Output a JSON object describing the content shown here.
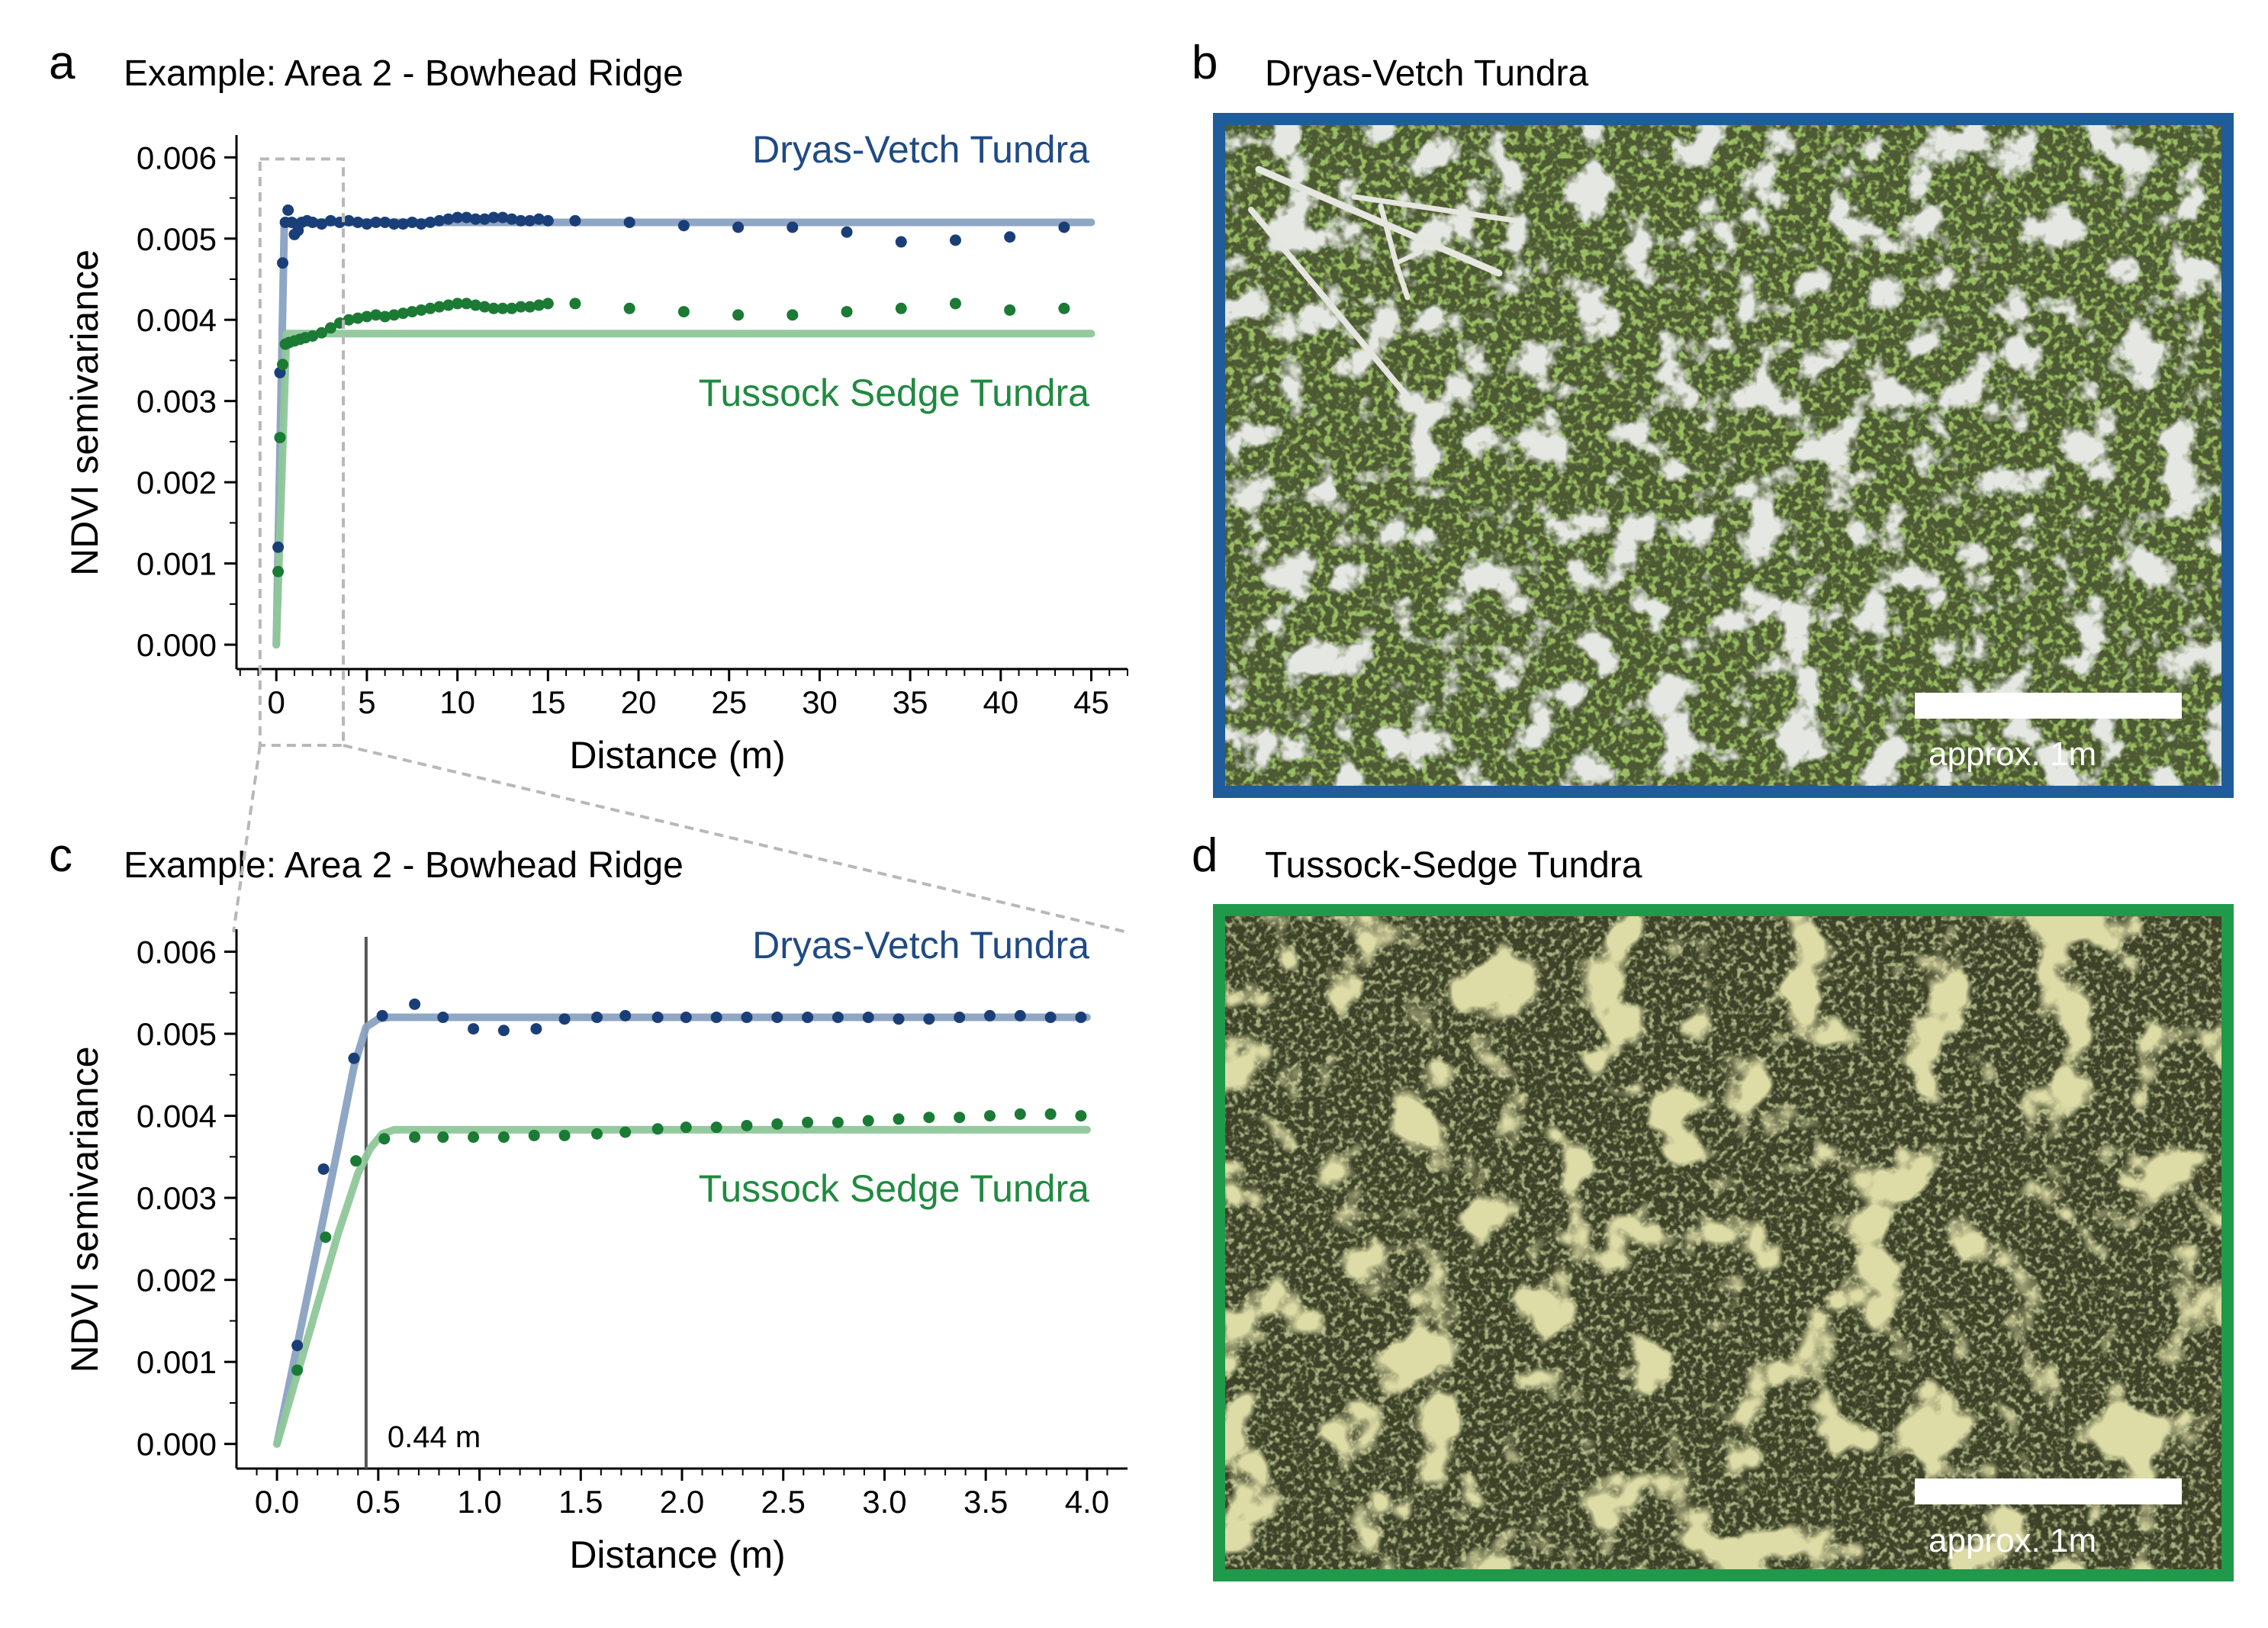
{
  "panels": {
    "a": {
      "letter": "a",
      "title": "Example: Area 2 - Bowhead Ridge"
    },
    "b": {
      "letter": "b",
      "title": "Dryas-Vetch Tundra",
      "scale_label": "approx. 1m",
      "frame_color": "#1f5c99"
    },
    "c": {
      "letter": "c",
      "title": "Example: Area 2 - Bowhead Ridge",
      "vline_label": "0.44 m"
    },
    "d": {
      "letter": "d",
      "title": "Tussock-Sedge Tundra",
      "scale_label": "approx. 1m",
      "frame_color": "#1e9a4a"
    }
  },
  "colors": {
    "dryas_points": "#1a3f78",
    "dryas_line": "#8aa1c2",
    "dryas_label": "#1f4a85",
    "tussock_points": "#1b7a34",
    "tussock_line": "#8fc79a",
    "tussock_label": "#208a40",
    "zoom_box": "#b8b8b8"
  },
  "chart_data": [
    {
      "id": "a",
      "type": "scatter",
      "xlabel": "Distance (m)",
      "ylabel": "NDVI semivariance",
      "xlim": [
        -2.2,
        47
      ],
      "ylim": [
        -0.0003,
        0.0062
      ],
      "xticks": [
        0,
        5,
        10,
        15,
        20,
        25,
        30,
        35,
        40,
        45
      ],
      "yticks": [
        0.0,
        0.001,
        0.002,
        0.003,
        0.004,
        0.005,
        0.006
      ],
      "ytick_labels": [
        "0.000",
        "0.001",
        "0.002",
        "0.003",
        "0.004",
        "0.005",
        "0.006"
      ],
      "zoom_box": {
        "x": [
          -0.9,
          3.7
        ],
        "y": [
          -0.0003,
          0.00598
        ]
      },
      "series": [
        {
          "name": "Dryas-Vetch Tundra",
          "points": [
            [
              0.1,
              0.0012
            ],
            [
              0.2,
              0.00335
            ],
            [
              0.35,
              0.0047
            ],
            [
              0.5,
              0.0052
            ],
            [
              0.65,
              0.00535
            ],
            [
              0.85,
              0.0052
            ],
            [
              1.0,
              0.00505
            ],
            [
              1.2,
              0.0051
            ],
            [
              1.4,
              0.0052
            ],
            [
              1.7,
              0.00522
            ],
            [
              2.0,
              0.0052
            ],
            [
              2.5,
              0.00518
            ],
            [
              3.0,
              0.00522
            ],
            [
              3.5,
              0.0052
            ],
            [
              4.0,
              0.00522
            ],
            [
              4.5,
              0.0052
            ],
            [
              5,
              0.00518
            ],
            [
              5.5,
              0.0052
            ],
            [
              6,
              0.0052
            ],
            [
              6.5,
              0.00518
            ],
            [
              7,
              0.00518
            ],
            [
              7.5,
              0.0052
            ],
            [
              8,
              0.00518
            ],
            [
              8.5,
              0.0052
            ],
            [
              9,
              0.00522
            ],
            [
              9.5,
              0.00524
            ],
            [
              10,
              0.00526
            ],
            [
              10.5,
              0.00526
            ],
            [
              11,
              0.00524
            ],
            [
              11.5,
              0.00524
            ],
            [
              12,
              0.00526
            ],
            [
              12.5,
              0.00526
            ],
            [
              13,
              0.00524
            ],
            [
              13.5,
              0.00522
            ],
            [
              14,
              0.00522
            ],
            [
              14.5,
              0.00524
            ],
            [
              15,
              0.00522
            ],
            [
              16.5,
              0.00522
            ],
            [
              19.5,
              0.0052
            ],
            [
              22.5,
              0.00516
            ],
            [
              25.5,
              0.00514
            ],
            [
              28.5,
              0.00514
            ],
            [
              31.5,
              0.00508
            ],
            [
              34.5,
              0.00496
            ],
            [
              37.5,
              0.00498
            ],
            [
              40.5,
              0.00502
            ],
            [
              43.5,
              0.00514
            ]
          ],
          "fit": [
            [
              0,
              0.0
            ],
            [
              0.44,
              0.0052
            ],
            [
              45,
              0.0052
            ]
          ]
        },
        {
          "name": "Tussock Sedge Tundra",
          "points": [
            [
              0.1,
              0.0009
            ],
            [
              0.2,
              0.00255
            ],
            [
              0.35,
              0.00345
            ],
            [
              0.5,
              0.0037
            ],
            [
              0.7,
              0.00372
            ],
            [
              1.0,
              0.00374
            ],
            [
              1.3,
              0.00376
            ],
            [
              1.6,
              0.00378
            ],
            [
              2.0,
              0.0038
            ],
            [
              2.5,
              0.00384
            ],
            [
              3.0,
              0.0039
            ],
            [
              3.5,
              0.00396
            ],
            [
              4,
              0.004
            ],
            [
              4.5,
              0.00402
            ],
            [
              5,
              0.00404
            ],
            [
              5.5,
              0.00406
            ],
            [
              6,
              0.00404
            ],
            [
              6.5,
              0.00406
            ],
            [
              7,
              0.00408
            ],
            [
              7.5,
              0.0041
            ],
            [
              8,
              0.00412
            ],
            [
              8.5,
              0.00414
            ],
            [
              9,
              0.00416
            ],
            [
              9.5,
              0.00418
            ],
            [
              10,
              0.0042
            ],
            [
              10.5,
              0.0042
            ],
            [
              11,
              0.00418
            ],
            [
              11.5,
              0.00416
            ],
            [
              12,
              0.00414
            ],
            [
              12.5,
              0.00414
            ],
            [
              13,
              0.00414
            ],
            [
              13.5,
              0.00416
            ],
            [
              14,
              0.00416
            ],
            [
              14.5,
              0.00418
            ],
            [
              15,
              0.0042
            ],
            [
              16.5,
              0.0042
            ],
            [
              19.5,
              0.00414
            ],
            [
              22.5,
              0.0041
            ],
            [
              25.5,
              0.00406
            ],
            [
              28.5,
              0.00406
            ],
            [
              31.5,
              0.0041
            ],
            [
              34.5,
              0.00414
            ],
            [
              37.5,
              0.0042
            ],
            [
              40.5,
              0.00412
            ],
            [
              43.5,
              0.00414
            ]
          ],
          "fit": [
            [
              0,
              0.0
            ],
            [
              0.56,
              0.00383
            ],
            [
              45,
              0.00383
            ]
          ]
        }
      ]
    },
    {
      "id": "c",
      "type": "scatter",
      "xlabel": "Distance (m)",
      "ylabel": "NDVI semivariance",
      "xlim": [
        -0.2,
        4.2
      ],
      "ylim": [
        -0.0003,
        0.0062
      ],
      "xticks": [
        0.0,
        0.5,
        1.0,
        1.5,
        2.0,
        2.5,
        3.0,
        3.5,
        4.0
      ],
      "xtick_labels": [
        "0.0",
        "0.5",
        "1.0",
        "1.5",
        "2.0",
        "2.5",
        "3.0",
        "3.5",
        "4.0"
      ],
      "yticks": [
        0.0,
        0.001,
        0.002,
        0.003,
        0.004,
        0.005,
        0.006
      ],
      "ytick_labels": [
        "0.000",
        "0.001",
        "0.002",
        "0.003",
        "0.004",
        "0.005",
        "0.006"
      ],
      "vline_x": 0.44,
      "series": [
        {
          "name": "Dryas-Vetch Tundra",
          "points": [
            [
              0.1,
              0.0012
            ],
            [
              0.23,
              0.00335
            ],
            [
              0.38,
              0.0047
            ],
            [
              0.52,
              0.00522
            ],
            [
              0.68,
              0.00536
            ],
            [
              0.82,
              0.0052
            ],
            [
              0.97,
              0.00506
            ],
            [
              1.12,
              0.00504
            ],
            [
              1.28,
              0.00506
            ],
            [
              1.42,
              0.00518
            ],
            [
              1.58,
              0.0052
            ],
            [
              1.72,
              0.00522
            ],
            [
              1.88,
              0.0052
            ],
            [
              2.02,
              0.0052
            ],
            [
              2.17,
              0.0052
            ],
            [
              2.32,
              0.0052
            ],
            [
              2.47,
              0.0052
            ],
            [
              2.62,
              0.0052
            ],
            [
              2.77,
              0.0052
            ],
            [
              2.92,
              0.0052
            ],
            [
              3.07,
              0.00518
            ],
            [
              3.22,
              0.00518
            ],
            [
              3.37,
              0.0052
            ],
            [
              3.52,
              0.00522
            ],
            [
              3.67,
              0.00522
            ],
            [
              3.82,
              0.0052
            ],
            [
              3.97,
              0.0052
            ]
          ],
          "fit": [
            [
              0,
              0.0
            ],
            [
              0.1,
              0.0012
            ],
            [
              0.2,
              0.0024
            ],
            [
              0.3,
              0.0036
            ],
            [
              0.38,
              0.0046
            ],
            [
              0.44,
              0.00508
            ],
            [
              0.5,
              0.00518
            ],
            [
              0.55,
              0.0052
            ],
            [
              4.0,
              0.0052
            ]
          ]
        },
        {
          "name": "Tussock Sedge Tundra",
          "points": [
            [
              0.1,
              0.0009
            ],
            [
              0.24,
              0.00252
            ],
            [
              0.39,
              0.00345
            ],
            [
              0.53,
              0.00372
            ],
            [
              0.68,
              0.00374
            ],
            [
              0.82,
              0.00374
            ],
            [
              0.97,
              0.00374
            ],
            [
              1.12,
              0.00374
            ],
            [
              1.27,
              0.00376
            ],
            [
              1.42,
              0.00376
            ],
            [
              1.58,
              0.00378
            ],
            [
              1.72,
              0.0038
            ],
            [
              1.88,
              0.00384
            ],
            [
              2.02,
              0.00386
            ],
            [
              2.17,
              0.00386
            ],
            [
              2.32,
              0.00388
            ],
            [
              2.47,
              0.0039
            ],
            [
              2.62,
              0.00392
            ],
            [
              2.77,
              0.00392
            ],
            [
              2.92,
              0.00394
            ],
            [
              3.07,
              0.00396
            ],
            [
              3.22,
              0.00398
            ],
            [
              3.37,
              0.00398
            ],
            [
              3.52,
              0.004
            ],
            [
              3.67,
              0.00402
            ],
            [
              3.82,
              0.00402
            ],
            [
              3.97,
              0.004
            ]
          ],
          "fit": [
            [
              0,
              0.0
            ],
            [
              0.1,
              0.00085
            ],
            [
              0.2,
              0.0017
            ],
            [
              0.3,
              0.00255
            ],
            [
              0.4,
              0.0033
            ],
            [
              0.46,
              0.0036
            ],
            [
              0.52,
              0.00378
            ],
            [
              0.58,
              0.00383
            ],
            [
              4.0,
              0.00383
            ]
          ]
        }
      ]
    }
  ]
}
